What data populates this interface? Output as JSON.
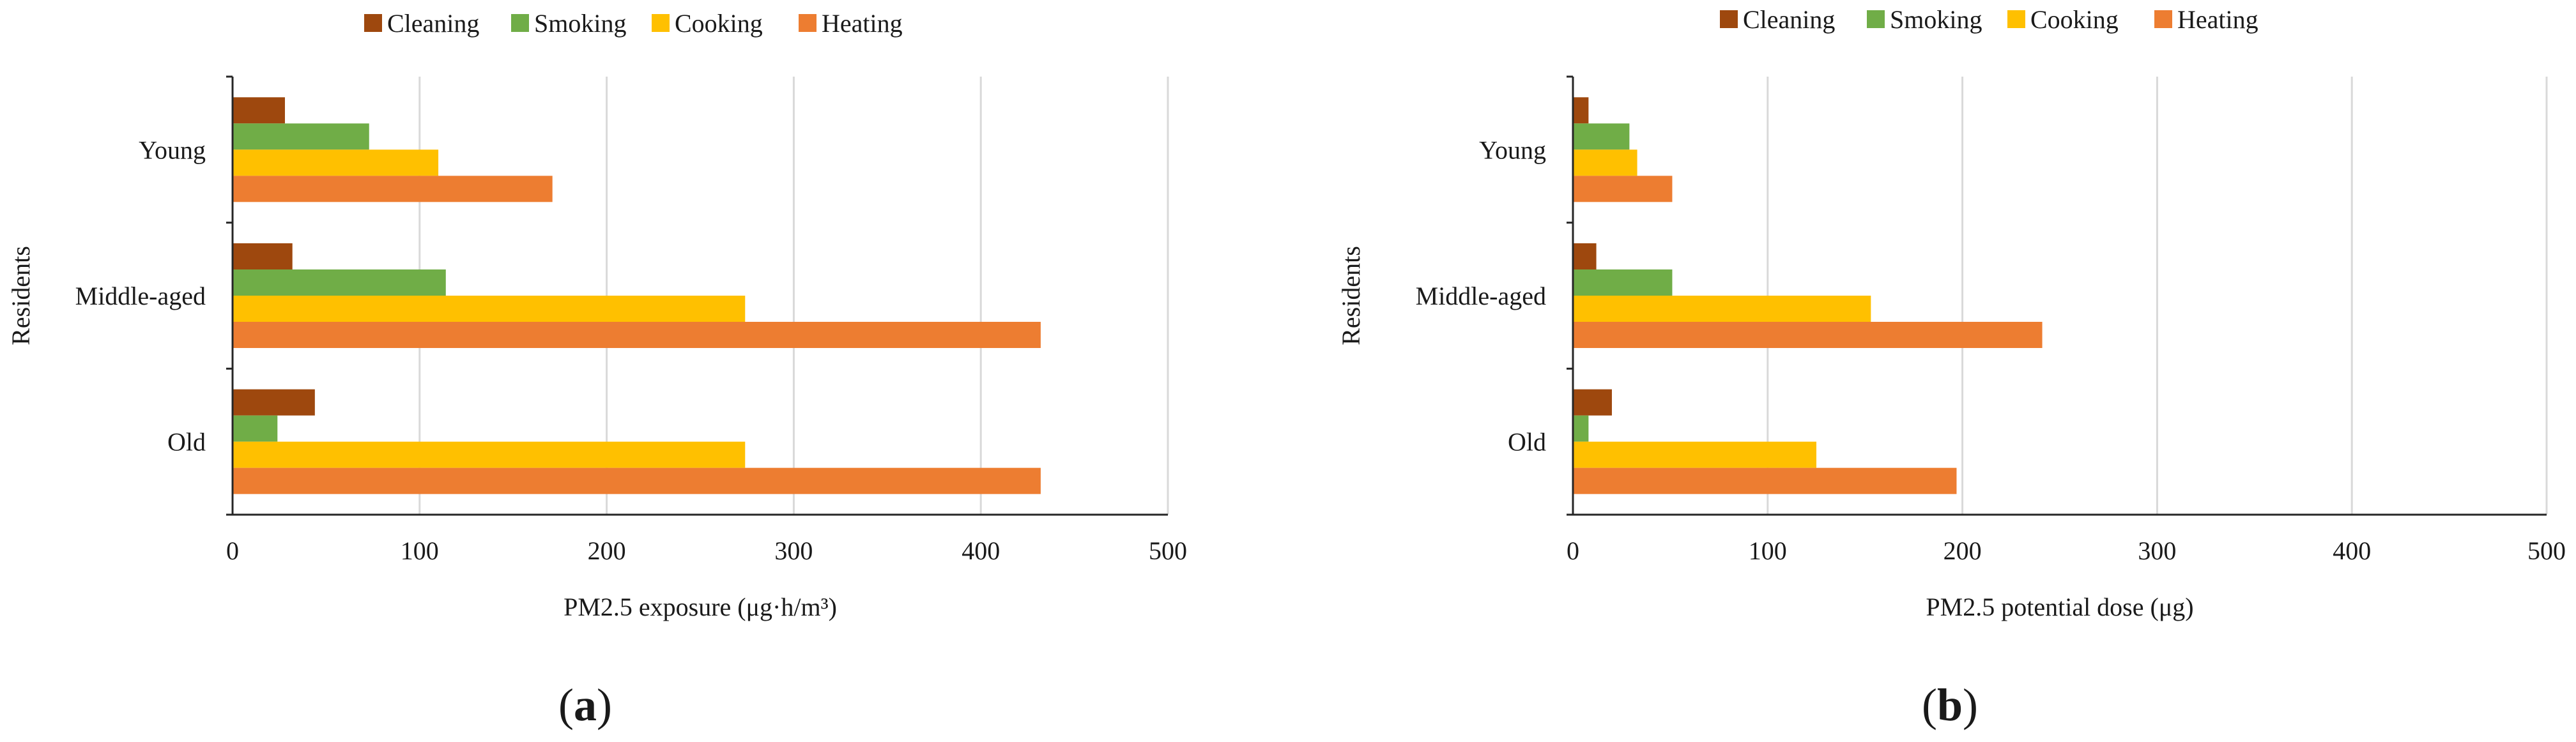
{
  "colors": {
    "Cleaning": "#9E480E",
    "Smoking": "#70AD47",
    "Cooking": "#FFC000",
    "Heating": "#ED7D31",
    "gridline": "#D9D9D9",
    "axis": "#262626"
  },
  "chart_data": [
    {
      "type": "bar",
      "orientation": "horizontal",
      "panel_label": "(a)",
      "panel_letter": "a",
      "title": "",
      "xlabel": "PM2.5 exposure (μg·h/m³)",
      "ylabel": "Residents",
      "xlim": [
        0,
        500
      ],
      "xticks": [
        "0",
        "100",
        "200",
        "300",
        "400",
        "500"
      ],
      "grid": true,
      "legend": "top",
      "categories": [
        "Young",
        "Middle-aged",
        "Old"
      ],
      "series": [
        {
          "name": "Cleaning",
          "values": [
            28,
            32,
            44
          ]
        },
        {
          "name": "Smoking",
          "values": [
            73,
            114,
            24
          ]
        },
        {
          "name": "Cooking",
          "values": [
            110,
            274,
            274
          ]
        },
        {
          "name": "Heating",
          "values": [
            171,
            432,
            432
          ]
        }
      ]
    },
    {
      "type": "bar",
      "orientation": "horizontal",
      "panel_label": "(b)",
      "panel_letter": "b",
      "title": "",
      "xlabel": "PM2.5 potential dose (μg)",
      "ylabel": "Residents",
      "xlim": [
        0,
        500
      ],
      "xticks": [
        "0",
        "100",
        "200",
        "300",
        "400",
        "500"
      ],
      "grid": true,
      "legend": "top",
      "categories": [
        "Young",
        "Middle-aged",
        "Old"
      ],
      "series": [
        {
          "name": "Cleaning",
          "values": [
            8,
            12,
            20
          ]
        },
        {
          "name": "Smoking",
          "values": [
            29,
            51,
            8
          ]
        },
        {
          "name": "Cooking",
          "values": [
            33,
            153,
            125
          ]
        },
        {
          "name": "Heating",
          "values": [
            51,
            241,
            197
          ]
        }
      ]
    }
  ]
}
